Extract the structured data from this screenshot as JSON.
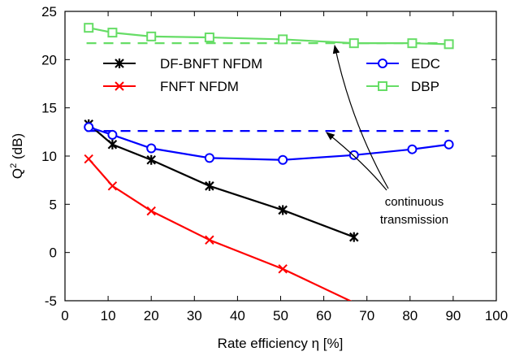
{
  "chart_data": {
    "type": "line",
    "xlabel": "Rate efficiency η [%]",
    "ylabel_main": "Q",
    "ylabel_sup": "2",
    "ylabel_rest": " (dB)",
    "xlim": [
      0,
      100
    ],
    "ylim": [
      -5,
      25
    ],
    "xticks": [
      0,
      10,
      20,
      30,
      40,
      50,
      60,
      70,
      80,
      90,
      100
    ],
    "yticks": [
      -5,
      0,
      5,
      10,
      15,
      20,
      25
    ],
    "grid": false,
    "series": [
      {
        "name": "DF-BNFT NFDM",
        "color": "#000000",
        "marker": "star",
        "x": [
          5.5,
          11,
          20,
          33.5,
          50.5,
          67
        ],
        "y": [
          13.3,
          11.2,
          9.6,
          6.9,
          4.4,
          1.6
        ]
      },
      {
        "name": "FNFT NFDM",
        "color": "#ff0000",
        "marker": "x",
        "x": [
          5.5,
          11,
          20,
          33.5,
          50.5,
          67
        ],
        "y": [
          9.7,
          6.9,
          4.3,
          1.3,
          -1.7,
          -5.2
        ]
      },
      {
        "name": "EDC",
        "color": "#0000ff",
        "marker": "circle",
        "x": [
          5.5,
          11,
          20,
          33.5,
          50.5,
          67,
          80.5,
          89
        ],
        "y": [
          13.0,
          12.2,
          10.8,
          9.8,
          9.6,
          10.1,
          10.7,
          11.2
        ]
      },
      {
        "name": "DBP",
        "color": "#66dd66",
        "marker": "square",
        "x": [
          5.5,
          11,
          20,
          33.5,
          50.5,
          67,
          80.5,
          89
        ],
        "y": [
          23.3,
          22.8,
          22.4,
          22.3,
          22.1,
          21.7,
          21.7,
          21.6
        ]
      }
    ],
    "reference_lines": [
      {
        "series": "EDC",
        "color": "#0000ff",
        "y": 12.6,
        "x_range": [
          5,
          89
        ]
      },
      {
        "series": "DBP",
        "color": "#66dd66",
        "y": 21.7,
        "x_range": [
          5,
          89
        ]
      }
    ],
    "annotation": {
      "line1": "continuous",
      "line2": "transmission"
    },
    "legend": [
      {
        "label": "DF-BNFT NFDM",
        "series": 0,
        "placement": "top-left"
      },
      {
        "label": "FNFT NFDM",
        "series": 1,
        "placement": "top-left"
      },
      {
        "label": "EDC",
        "series": 2,
        "placement": "top-right"
      },
      {
        "label": "DBP",
        "series": 3,
        "placement": "top-right"
      }
    ]
  }
}
